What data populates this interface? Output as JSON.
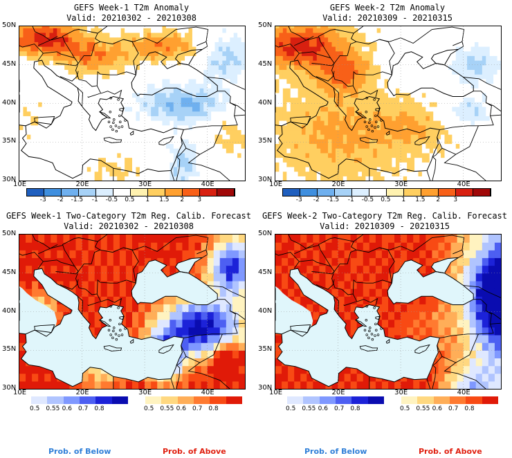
{
  "panels": [
    {
      "title": "GEFS Week-1 T2m Anomaly",
      "valid": "Valid: 20210302 - 20210308"
    },
    {
      "title": "GEFS Week-2 T2m Anomaly",
      "valid": "Valid: 20210309 - 20210315"
    },
    {
      "title": "GEFS Week-1 Two-Category T2m Reg. Calib. Forecast",
      "valid": "Valid: 20210302 - 20210308"
    },
    {
      "title": "GEFS Week-2 Two-Category T2m Reg. Calib. Forecast",
      "valid": "Valid: 20210309 - 20210315"
    }
  ],
  "axes": {
    "lat_labels": [
      "50N",
      "45N",
      "40N",
      "35N",
      "30N"
    ],
    "lon_labels": [
      "10E",
      "20E",
      "30E",
      "40E"
    ]
  },
  "anomaly_colorbar": {
    "labels": [
      "-3",
      "-2",
      "-1.5",
      "-1",
      "-0.5",
      "0.5",
      "1",
      "1.5",
      "2",
      "3"
    ],
    "colors": [
      "#1f5fbf",
      "#3f8fdf",
      "#6fb0ef",
      "#a7d2f7",
      "#dcefff",
      "#ffffff",
      "#fff2b0",
      "#ffcf60",
      "#ffa030",
      "#f86018",
      "#d82010",
      "#a00808"
    ]
  },
  "prob_colorbar": {
    "below_labels": [
      "0.5",
      "0.55",
      "0.6",
      "0.7",
      "0.8"
    ],
    "above_labels": [
      "0.5",
      "0.55",
      "0.6",
      "0.7",
      "0.8"
    ],
    "below_colors": [
      "#dfe8ff",
      "#b0c4ff",
      "#7f98ff",
      "#4d5ff2",
      "#1c22d8",
      "#0a0cb0"
    ],
    "above_colors": [
      "#fff3c0",
      "#ffd880",
      "#ffae58",
      "#ff7a30",
      "#f84a14",
      "#e01a08"
    ]
  },
  "legend": {
    "below": "Prob. of Below",
    "above": "Prob. of Above",
    "below_color": "#2f7fd8",
    "above_color": "#e02010"
  }
}
